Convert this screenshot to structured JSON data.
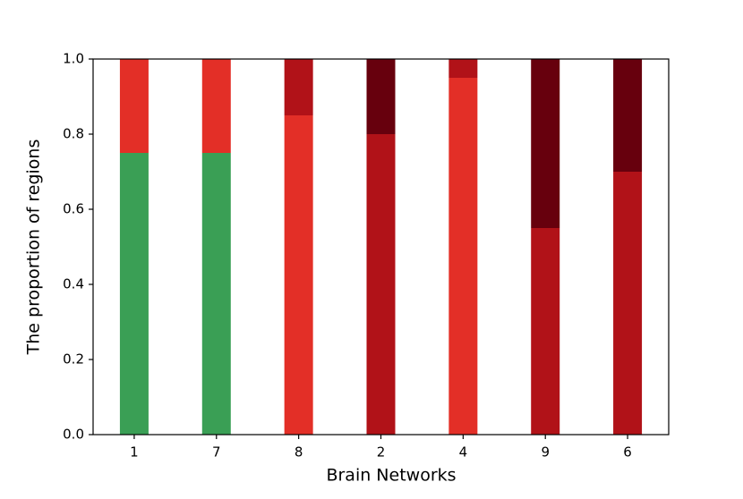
{
  "chart_data": {
    "type": "bar",
    "stacked": true,
    "x_label": "Brain Networks",
    "y_label": "The proportion of regions",
    "categories": [
      "1",
      "7",
      "8",
      "2",
      "4",
      "9",
      "6"
    ],
    "series": [
      {
        "color": "#3a9f55",
        "values": [
          0.75,
          0.75,
          0,
          0,
          0,
          0,
          0
        ]
      },
      {
        "color": "#e32f27",
        "values": [
          0.25,
          0.25,
          0.85,
          0,
          0.95,
          0,
          0
        ]
      },
      {
        "color": "#b11218",
        "values": [
          0,
          0,
          0.15,
          0.8,
          0.05,
          0.55,
          0.7
        ]
      },
      {
        "color": "#67000d",
        "values": [
          0,
          0,
          0,
          0.2,
          0,
          0.45,
          0.3
        ]
      }
    ],
    "ylim": [
      0,
      1
    ],
    "yticks": [
      {
        "value": 0,
        "label": "0.0"
      },
      0.2,
      0.4,
      0.6,
      0.8,
      {
        "value": 1,
        "label": "1.0"
      }
    ],
    "grid": false
  }
}
